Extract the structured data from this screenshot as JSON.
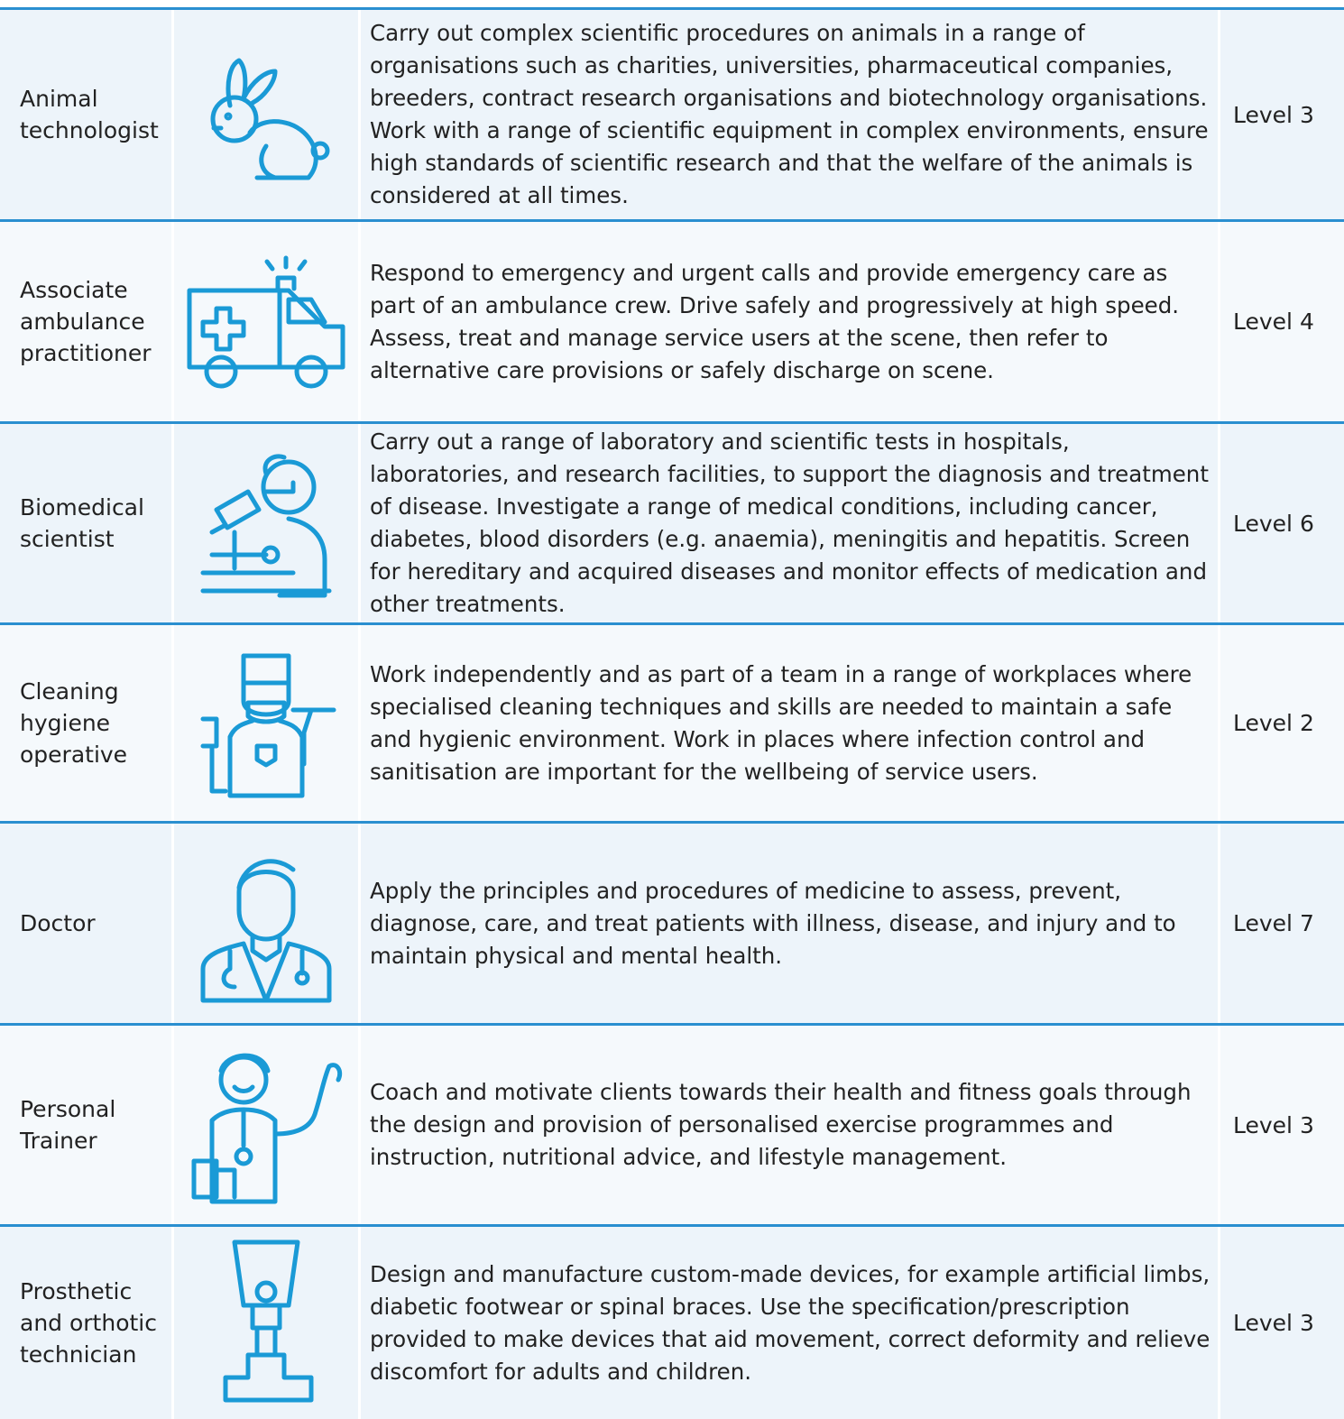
{
  "table": {
    "rows": [
      [
        "Animal technologist",
        "Carry out complex scientific procedures on animals in a range of organisations such as charities, universities, pharmaceutical companies, breeders, contract research organisations and biotechnology organisations. Work with a range of scientific equipment in complex environments, ensure high standards of scientific research and that the welfare of the animals is considered at all times.",
        "Level 3"
      ],
      [
        "Associate ambulance practitioner",
        "Respond to emergency and urgent calls and provide emergency care as part of an ambulance crew. Drive safely and progressively at high speed. Assess, treat and manage service users at the scene, then refer to alternative care provisions or safely discharge on scene.",
        "Level 4"
      ],
      [
        "Biomedical scientist",
        "Carry out a range of laboratory and scientific tests in hospitals, laboratories, and research facilities, to support the diagnosis and treatment of disease. Investigate a range of medical conditions, including cancer, diabetes, blood disorders (e.g. anaemia), meningitis and hepatitis. Screen for hereditary and acquired diseases and monitor effects of medication and other treatments.",
        "Level 6"
      ],
      [
        "Cleaning hygiene operative",
        "Work independently and as part of a team in a range of workplaces where specialised cleaning techniques and skills are needed to maintain a safe and hygienic environment. Work in places where infection control and sanitisation are important for the wellbeing of service users.",
        "Level 2"
      ],
      [
        "Doctor",
        "Apply the principles and procedures of medicine to assess, prevent, diagnose, care, and treat patients with illness, disease, and injury and to maintain physical and mental health.",
        "Level 7"
      ],
      [
        "Personal Trainer",
        "Coach and motivate clients towards their health and fitness goals through the design and provision of personalised exercise programmes and instruction, nutritional advice, and lifestyle management.",
        "Level 3"
      ],
      [
        "Prosthetic and orthotic technician",
        "Design and manufacture custom-made devices, for example artificial limbs, diabetic footwear or spinal braces. Use the specification/prescription provided to make devices that aid movement, correct deformity and relieve discomfort for adults and children.",
        "Level 3"
      ]
    ]
  }
}
